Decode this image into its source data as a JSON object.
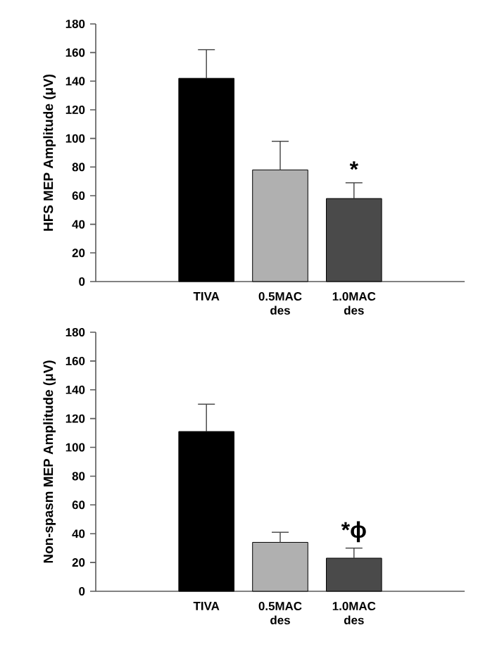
{
  "chart_data": [
    {
      "type": "bar",
      "ylabel": "HFS MEP Amplitude (μV)",
      "categories": [
        "TIVA",
        "0.5MAC des",
        "1.0MAC des"
      ],
      "values": [
        142,
        78,
        58
      ],
      "colors": [
        "#000000",
        "#b0b0b0",
        "#4a4a4a"
      ],
      "errors": [
        [
          142,
          162
        ],
        [
          78,
          98
        ],
        [
          58,
          69
        ]
      ],
      "ylim": [
        0,
        180
      ],
      "yticks": [
        0,
        20,
        40,
        60,
        80,
        100,
        120,
        140,
        160,
        180
      ],
      "annotations": [
        {
          "text": "*",
          "x": "1.0MAC des",
          "y": 69
        }
      ]
    },
    {
      "type": "bar",
      "ylabel": "Non-spasm MEP Amplitude (μV)",
      "categories": [
        "TIVA",
        "0.5MAC des",
        "1.0MAC des"
      ],
      "values": [
        111,
        34,
        23
      ],
      "colors": [
        "#000000",
        "#b0b0b0",
        "#4a4a4a"
      ],
      "errors": [
        [
          111,
          130
        ],
        [
          34,
          41
        ],
        [
          23,
          30
        ]
      ],
      "ylim": [
        0,
        180
      ],
      "yticks": [
        0,
        20,
        40,
        60,
        80,
        100,
        120,
        140,
        160,
        180
      ],
      "annotations": [
        {
          "text": "*ϕ",
          "x": "1.0MAC des",
          "y": 30
        }
      ]
    }
  ]
}
